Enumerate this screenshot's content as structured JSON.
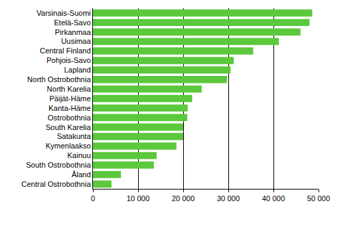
{
  "chart_data": {
    "type": "bar",
    "orientation": "horizontal",
    "categories": [
      "Varsinais-Suomi",
      "Etelä-Savo",
      "Pirkanmaa",
      "Uusimaa",
      "Central Finland",
      "Pohjois-Savo",
      "Lapland",
      "North Ostrobothnia",
      "North Karelia",
      "Päijät-Häme",
      "Kanta-Häme",
      "Ostrobothnia",
      "South Karelia",
      "Satakunta",
      "Kymenlaakso",
      "Kainuu",
      "South Ostrobothnia",
      "Åland",
      "Central Ostrobothnia"
    ],
    "values": [
      48600,
      48000,
      46000,
      41200,
      35500,
      31200,
      30500,
      29700,
      24100,
      22000,
      21000,
      20900,
      20000,
      20000,
      18500,
      14100,
      13500,
      6200,
      4100
    ],
    "color": "#5cc83c",
    "xlim": [
      0,
      50000
    ],
    "xticks": [
      0,
      {
        "value": 10000,
        "label": "10 000"
      },
      {
        "value": 20000,
        "label": "20 000"
      },
      {
        "value": 30000,
        "label": "30 000"
      },
      {
        "value": 40000,
        "label": "40 000"
      },
      {
        "value": 50000,
        "label": "50 000"
      }
    ],
    "grid": true
  }
}
